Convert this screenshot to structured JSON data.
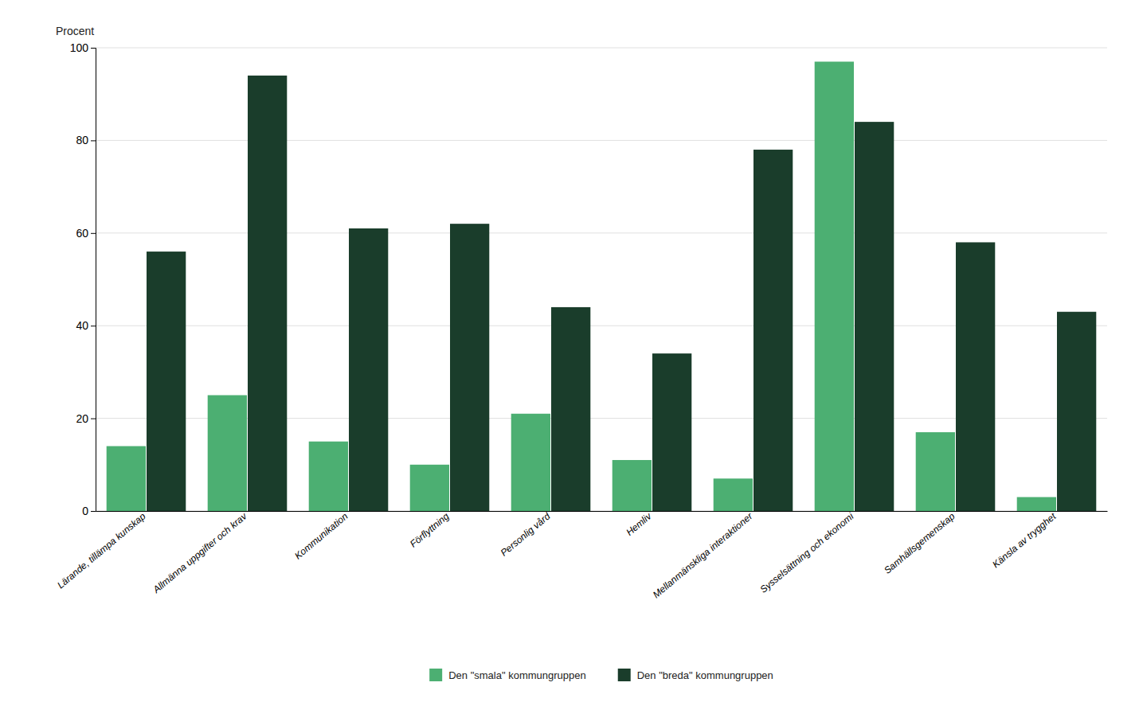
{
  "chart_data": {
    "type": "bar",
    "ylabel": "Procent",
    "categories": [
      "Lärande, tillämpa kunskap",
      "Allmänna uppgifter och krav",
      "Kommunikation",
      "Förflyttning",
      "Personlig vård",
      "Hemliv",
      "Mellanmänskliga interaktioner",
      "Sysselsättning och ekonomi",
      "Samhällsgemenskap",
      "Känsla av trygghet"
    ],
    "series": [
      {
        "name": "Den \"smala\" kommungruppen",
        "color": "#4caf72",
        "values": [
          14,
          25,
          15,
          10,
          21,
          11,
          7,
          97,
          17,
          3
        ]
      },
      {
        "name": "Den \"breda\" kommungruppen",
        "color": "#1a3d2b",
        "values": [
          56,
          94,
          61,
          62,
          44,
          34,
          78,
          84,
          58,
          43
        ]
      }
    ],
    "ylim": [
      0,
      100
    ],
    "yticks": [
      0,
      20,
      40,
      60,
      80,
      100
    ],
    "grid": true,
    "legend": "bottom"
  }
}
